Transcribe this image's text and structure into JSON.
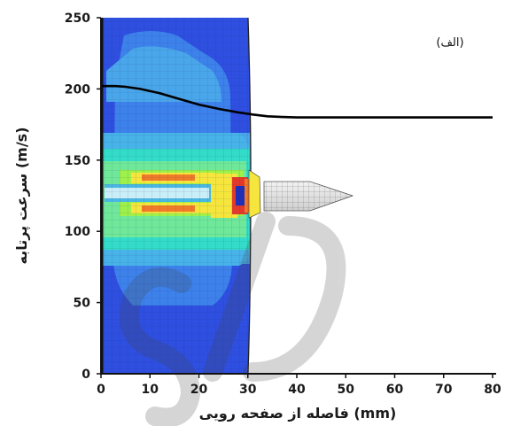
{
  "chart_data": {
    "type": "line",
    "title": "",
    "panel_label": "(الف)",
    "xlabel": "فاصله از صفحه رویی (mm)",
    "ylabel": "سرعت پرتابه (m/s)",
    "xlim": [
      0,
      80
    ],
    "ylim": [
      0,
      250
    ],
    "x_ticks": [
      "0",
      "10",
      "20",
      "30",
      "40",
      "50",
      "60",
      "70",
      "80"
    ],
    "y_ticks": [
      "0",
      "50",
      "100",
      "150",
      "200",
      "250"
    ],
    "grid": false,
    "legend": "none",
    "series": [
      {
        "color": "#000000",
        "x": [
          0,
          3,
          5,
          8,
          12,
          16,
          20,
          24,
          28,
          31,
          34,
          37,
          40,
          45,
          50,
          60,
          70,
          80
        ],
        "y": [
          202,
          202,
          201.5,
          200,
          197,
          193,
          189,
          186,
          183.5,
          182,
          180.8,
          180.3,
          180,
          180,
          180,
          180,
          180,
          180
        ]
      }
    ],
    "background_image": "finite-element contour plot of plate penetration by a projectile",
    "colors": {
      "stress_low": "#2e52e6",
      "stress_mid_low": "#4aa6ea",
      "stress_mid": "#33dcc8",
      "stress_mid_high": "#9ef04a",
      "stress_high": "#f5e53c",
      "stress_very_high": "#f07a2a",
      "stress_max": "#e23a2a"
    }
  }
}
